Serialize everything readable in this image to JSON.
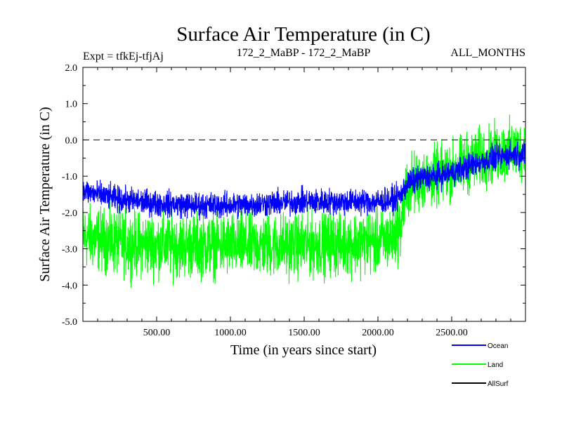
{
  "chart_data": {
    "type": "line",
    "title": "Surface Air Temperature (in C)",
    "subtitle_left": "Expt = tfkEj-tfjAj",
    "subtitle_center": "172_2_MaBP - 172_2_MaBP",
    "subtitle_right": "ALL_MONTHS",
    "xlabel": "Time (in years since start)",
    "ylabel": "Surface Air Temperature (in C)",
    "xlim": [
      0,
      3000
    ],
    "ylim": [
      -5.0,
      2.0
    ],
    "xticks": [
      500,
      1000,
      1500,
      2000,
      2500
    ],
    "xtick_labels": [
      "500.00",
      "1000.00",
      "1500.00",
      "2000.00",
      "2500.00"
    ],
    "yticks": [
      -5.0,
      -4.0,
      -3.0,
      -2.0,
      -1.0,
      0.0,
      1.0,
      2.0
    ],
    "ytick_labels": [
      "-5.0",
      "-4.0",
      "-3.0",
      "-2.0",
      "-1.0",
      "0.0",
      "1.0",
      "2.0"
    ],
    "reference_line": {
      "y": 0.0,
      "style": "dashed"
    },
    "legend_placement": "bottom-right",
    "series": [
      {
        "name": "Land",
        "color": "#00ff00",
        "x": [
          0,
          250,
          500,
          750,
          1000,
          1250,
          1500,
          1750,
          2000,
          2100,
          2150,
          2200,
          2300,
          2400,
          2500,
          2600,
          2700,
          2800,
          2900,
          3000
        ],
        "mean": [
          -2.65,
          -2.85,
          -2.9,
          -2.9,
          -2.9,
          -2.9,
          -2.9,
          -2.85,
          -2.8,
          -2.7,
          -2.4,
          -1.3,
          -1.1,
          -1.0,
          -0.85,
          -0.65,
          -0.5,
          -0.4,
          -0.3,
          -0.3
        ],
        "spread": [
          0.85,
          0.85,
          0.85,
          0.85,
          0.85,
          0.85,
          0.85,
          0.85,
          0.85,
          0.85,
          0.85,
          0.85,
          0.8,
          0.8,
          0.8,
          0.8,
          0.8,
          0.8,
          0.8,
          0.8
        ]
      },
      {
        "name": "Ocean",
        "color": "#0000ff",
        "x": [
          0,
          250,
          500,
          750,
          1000,
          1250,
          1500,
          1750,
          2000,
          2100,
          2150,
          2200,
          2300,
          2400,
          2500,
          2600,
          2700,
          2800,
          2900,
          3000
        ],
        "mean": [
          -1.4,
          -1.65,
          -1.75,
          -1.8,
          -1.8,
          -1.75,
          -1.7,
          -1.7,
          -1.7,
          -1.65,
          -1.55,
          -1.2,
          -1.05,
          -1.0,
          -0.9,
          -0.75,
          -0.6,
          -0.5,
          -0.4,
          -0.4
        ],
        "spread": [
          0.35,
          0.35,
          0.35,
          0.35,
          0.35,
          0.35,
          0.35,
          0.35,
          0.35,
          0.35,
          0.35,
          0.35,
          0.35,
          0.35,
          0.35,
          0.35,
          0.35,
          0.35,
          0.35,
          0.35
        ]
      },
      {
        "name": "AllSurf",
        "color": "#000000",
        "x": [],
        "mean": [],
        "spread": []
      }
    ]
  }
}
